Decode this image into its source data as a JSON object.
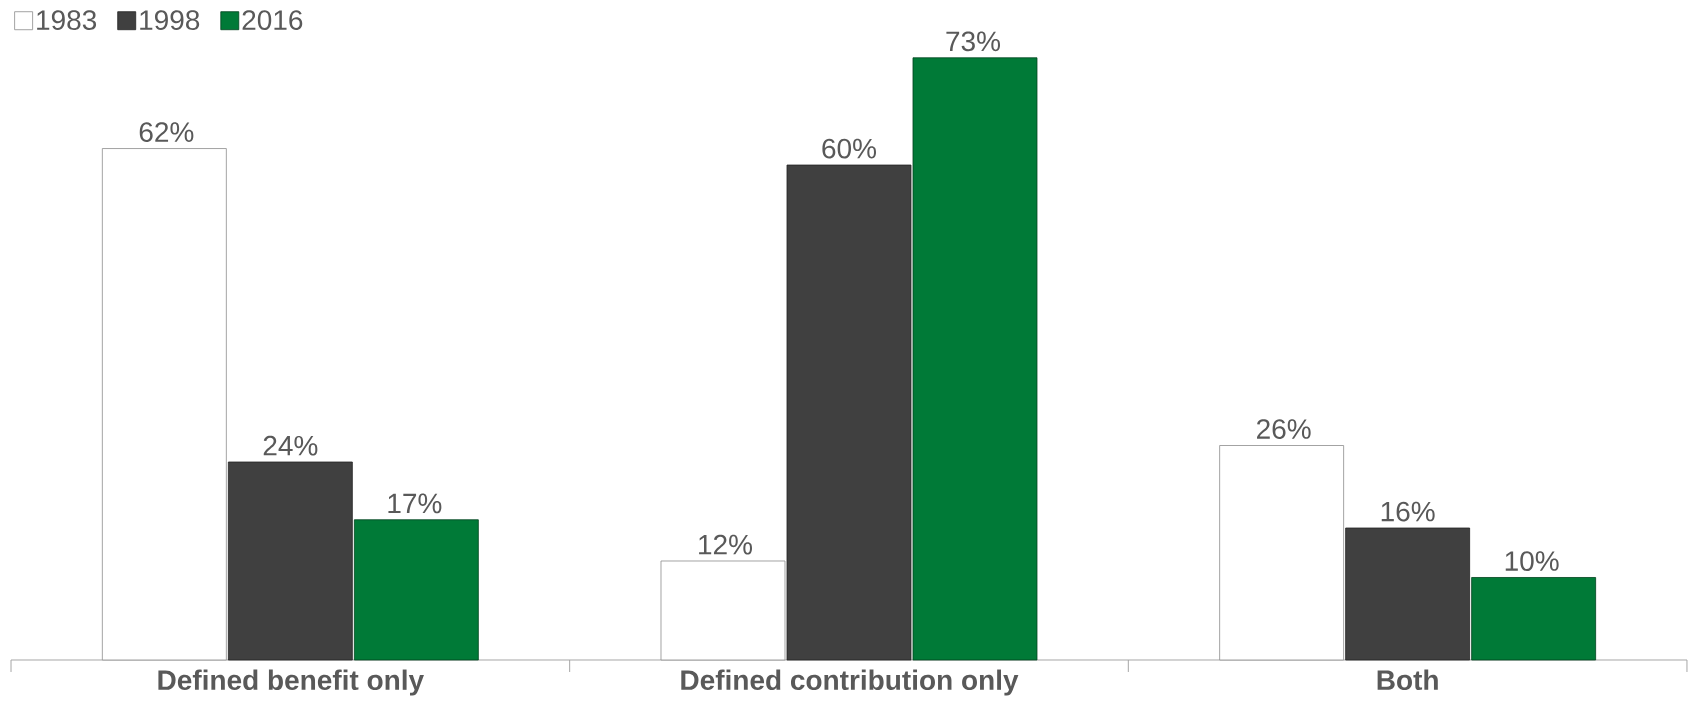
{
  "chart_data": {
    "type": "bar",
    "categories": [
      "Defined benefit only",
      "Defined contribution only",
      "Both"
    ],
    "series": [
      {
        "name": "1983",
        "color": "#ffffff",
        "values": [
          62,
          12,
          26
        ],
        "value_labels": [
          "62%",
          "12%",
          "26%"
        ]
      },
      {
        "name": "1998",
        "color": "#404040",
        "values": [
          24,
          60,
          16
        ],
        "value_labels": [
          "24%",
          "60%",
          "16%"
        ]
      },
      {
        "name": "2016",
        "color": "#007a37",
        "values": [
          17,
          73,
          10
        ],
        "value_labels": [
          "17%",
          "73%",
          "10%"
        ]
      }
    ],
    "legend": "top left"
  }
}
